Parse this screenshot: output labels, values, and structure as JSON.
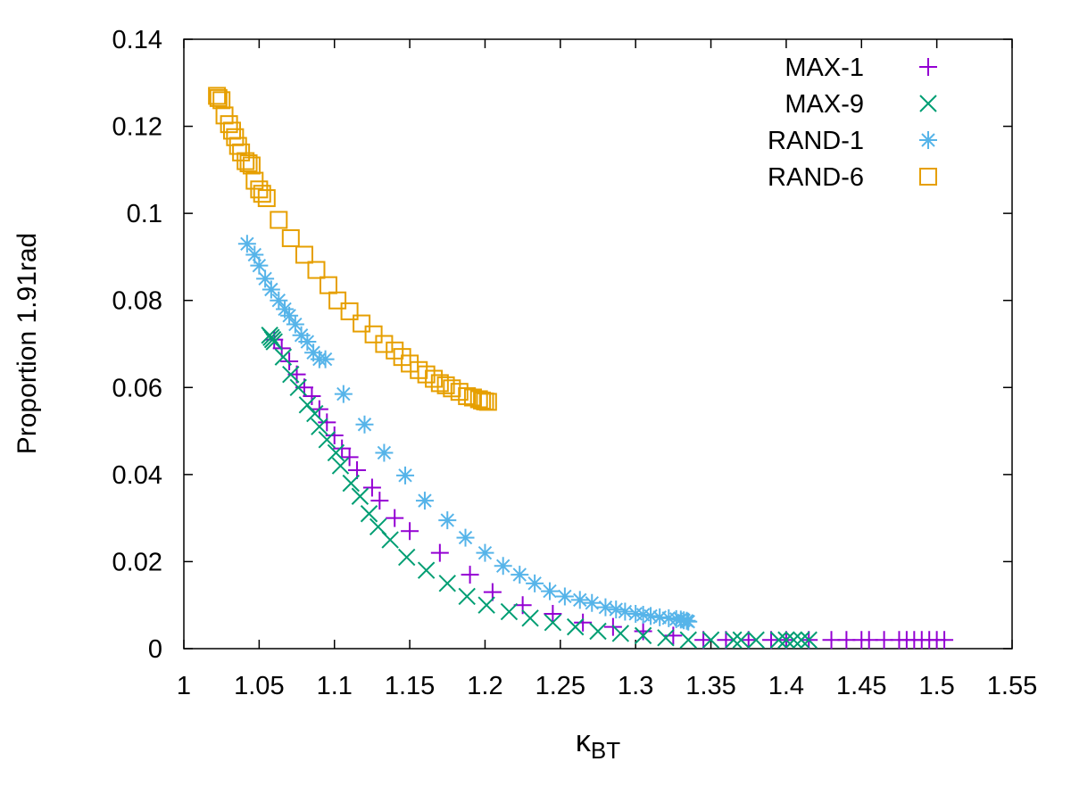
{
  "chart_data": {
    "type": "scatter",
    "title": "",
    "xlabel": {
      "main": "κ",
      "sub": "BT"
    },
    "ylabel": "Proportion 1.91rad",
    "xlim": [
      1.0,
      1.55
    ],
    "ylim": [
      0,
      0.14
    ],
    "xticks": [
      "1",
      "1.05",
      "1.1",
      "1.15",
      "1.2",
      "1.25",
      "1.3",
      "1.35",
      "1.4",
      "1.45",
      "1.5",
      "1.55"
    ],
    "yticks": [
      "0",
      "0.02",
      "0.04",
      "0.06",
      "0.08",
      "0.1",
      "0.12",
      "0.14"
    ],
    "legend_position": "top-right",
    "series": [
      {
        "name": "MAX-1",
        "marker": "plus",
        "color": "#9400d3",
        "points": [
          [
            1.06,
            0.071
          ],
          [
            1.065,
            0.069
          ],
          [
            1.07,
            0.066
          ],
          [
            1.075,
            0.063
          ],
          [
            1.08,
            0.06
          ],
          [
            1.085,
            0.058
          ],
          [
            1.09,
            0.055
          ],
          [
            1.095,
            0.052
          ],
          [
            1.1,
            0.049
          ],
          [
            1.105,
            0.046
          ],
          [
            1.11,
            0.044
          ],
          [
            1.115,
            0.041
          ],
          [
            1.125,
            0.037
          ],
          [
            1.13,
            0.034
          ],
          [
            1.14,
            0.03
          ],
          [
            1.15,
            0.027
          ],
          [
            1.17,
            0.022
          ],
          [
            1.19,
            0.017
          ],
          [
            1.205,
            0.013
          ],
          [
            1.225,
            0.01
          ],
          [
            1.245,
            0.008
          ],
          [
            1.265,
            0.006
          ],
          [
            1.285,
            0.005
          ],
          [
            1.305,
            0.004
          ],
          [
            1.325,
            0.003
          ],
          [
            1.345,
            0.002
          ],
          [
            1.36,
            0.002
          ],
          [
            1.375,
            0.002
          ],
          [
            1.39,
            0.002
          ],
          [
            1.4,
            0.002
          ],
          [
            1.415,
            0.002
          ],
          [
            1.43,
            0.002
          ],
          [
            1.44,
            0.002
          ],
          [
            1.45,
            0.002
          ],
          [
            1.455,
            0.002
          ],
          [
            1.465,
            0.002
          ],
          [
            1.475,
            0.002
          ],
          [
            1.48,
            0.002
          ],
          [
            1.485,
            0.002
          ],
          [
            1.49,
            0.002
          ],
          [
            1.495,
            0.002
          ],
          [
            1.5,
            0.002
          ],
          [
            1.505,
            0.002
          ]
        ]
      },
      {
        "name": "MAX-9",
        "marker": "cross",
        "color": "#009e73",
        "points": [
          [
            1.057,
            0.072
          ],
          [
            1.058,
            0.0715
          ],
          [
            1.059,
            0.071
          ],
          [
            1.06,
            0.0705
          ],
          [
            1.066,
            0.067
          ],
          [
            1.071,
            0.063
          ],
          [
            1.076,
            0.06
          ],
          [
            1.082,
            0.056
          ],
          [
            1.087,
            0.054
          ],
          [
            1.09,
            0.051
          ],
          [
            1.095,
            0.048
          ],
          [
            1.101,
            0.045
          ],
          [
            1.104,
            0.042
          ],
          [
            1.111,
            0.038
          ],
          [
            1.117,
            0.035
          ],
          [
            1.123,
            0.031
          ],
          [
            1.129,
            0.028
          ],
          [
            1.137,
            0.025
          ],
          [
            1.148,
            0.021
          ],
          [
            1.161,
            0.018
          ],
          [
            1.175,
            0.015
          ],
          [
            1.188,
            0.012
          ],
          [
            1.201,
            0.01
          ],
          [
            1.216,
            0.0085
          ],
          [
            1.23,
            0.007
          ],
          [
            1.245,
            0.006
          ],
          [
            1.26,
            0.005
          ],
          [
            1.275,
            0.004
          ],
          [
            1.29,
            0.0035
          ],
          [
            1.305,
            0.003
          ],
          [
            1.32,
            0.0025
          ],
          [
            1.335,
            0.002
          ],
          [
            1.35,
            0.002
          ],
          [
            1.365,
            0.002
          ],
          [
            1.37,
            0.002
          ],
          [
            1.38,
            0.002
          ],
          [
            1.395,
            0.002
          ],
          [
            1.4,
            0.002
          ],
          [
            1.405,
            0.002
          ],
          [
            1.41,
            0.002
          ],
          [
            1.415,
            0.002
          ]
        ]
      },
      {
        "name": "RAND-1",
        "marker": "star",
        "color": "#56b4e9",
        "points": [
          [
            1.042,
            0.093
          ],
          [
            1.047,
            0.0905
          ],
          [
            1.05,
            0.088
          ],
          [
            1.054,
            0.085
          ],
          [
            1.058,
            0.0825
          ],
          [
            1.063,
            0.08
          ],
          [
            1.067,
            0.078
          ],
          [
            1.07,
            0.0765
          ],
          [
            1.074,
            0.0745
          ],
          [
            1.078,
            0.072
          ],
          [
            1.082,
            0.0705
          ],
          [
            1.086,
            0.068
          ],
          [
            1.09,
            0.0665
          ],
          [
            1.094,
            0.0665
          ],
          [
            1.106,
            0.0585
          ],
          [
            1.12,
            0.0515
          ],
          [
            1.133,
            0.045
          ],
          [
            1.147,
            0.0398
          ],
          [
            1.16,
            0.034
          ],
          [
            1.175,
            0.0295
          ],
          [
            1.187,
            0.0255
          ],
          [
            1.2,
            0.022
          ],
          [
            1.212,
            0.019
          ],
          [
            1.223,
            0.017
          ],
          [
            1.233,
            0.015
          ],
          [
            1.243,
            0.0132
          ],
          [
            1.253,
            0.012
          ],
          [
            1.263,
            0.0112
          ],
          [
            1.271,
            0.0105
          ],
          [
            1.28,
            0.0095
          ],
          [
            1.287,
            0.009
          ],
          [
            1.293,
            0.0085
          ],
          [
            1.3,
            0.008
          ],
          [
            1.305,
            0.0078
          ],
          [
            1.31,
            0.0075
          ],
          [
            1.316,
            0.0072
          ],
          [
            1.322,
            0.007
          ],
          [
            1.327,
            0.0068
          ],
          [
            1.33,
            0.0067
          ],
          [
            1.332,
            0.0065
          ],
          [
            1.334,
            0.0064
          ],
          [
            1.335,
            0.0062
          ]
        ]
      },
      {
        "name": "RAND-6",
        "marker": "square",
        "color": "#e69f00",
        "points": [
          [
            1.022,
            0.127
          ],
          [
            1.023,
            0.1265
          ],
          [
            1.025,
            0.126
          ],
          [
            1.027,
            0.1225
          ],
          [
            1.03,
            0.1205
          ],
          [
            1.032,
            0.119
          ],
          [
            1.034,
            0.1175
          ],
          [
            1.036,
            0.1155
          ],
          [
            1.038,
            0.114
          ],
          [
            1.041,
            0.112
          ],
          [
            1.043,
            0.1115
          ],
          [
            1.045,
            0.111
          ],
          [
            1.047,
            0.1075
          ],
          [
            1.05,
            0.1055
          ],
          [
            1.052,
            0.1045
          ],
          [
            1.055,
            0.1035
          ],
          [
            1.063,
            0.0985
          ],
          [
            1.071,
            0.0943
          ],
          [
            1.08,
            0.0905
          ],
          [
            1.088,
            0.087
          ],
          [
            1.096,
            0.0835
          ],
          [
            1.102,
            0.08
          ],
          [
            1.11,
            0.0775
          ],
          [
            1.118,
            0.0747
          ],
          [
            1.126,
            0.0722
          ],
          [
            1.133,
            0.07
          ],
          [
            1.14,
            0.0685
          ],
          [
            1.145,
            0.067
          ],
          [
            1.15,
            0.0655
          ],
          [
            1.156,
            0.064
          ],
          [
            1.161,
            0.063
          ],
          [
            1.166,
            0.062
          ],
          [
            1.17,
            0.061
          ],
          [
            1.174,
            0.0605
          ],
          [
            1.178,
            0.0598
          ],
          [
            1.183,
            0.059
          ],
          [
            1.188,
            0.058
          ],
          [
            1.192,
            0.0577
          ],
          [
            1.196,
            0.0573
          ],
          [
            1.198,
            0.057
          ],
          [
            1.2,
            0.0568
          ],
          [
            1.202,
            0.0567
          ]
        ]
      }
    ]
  }
}
